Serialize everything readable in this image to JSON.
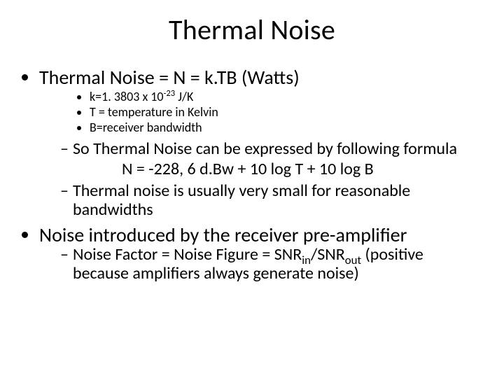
{
  "title": "Thermal Noise",
  "body_fontsize_pt": 28,
  "sub_fontsize_pt": 24,
  "subsub_fontsize_pt": 18,
  "title_fontsize_pt": 40,
  "text_color": "#000000",
  "background_color": "#ffffff",
  "bullets": {
    "b1": "Thermal Noise = N = k.TB (Watts)",
    "b1_sub": {
      "s1_pre": "k=1. 3803 x 10",
      "s1_sup": "-23",
      "s1_post": " J/K",
      "s2": "T = temperature in Kelvin",
      "s3": "B=receiver bandwidth"
    },
    "b1_dash": {
      "d1_line1": "So Thermal Noise can be expressed by following formula",
      "d1_formula": "N = -228, 6 d.Bw + 10 log T + 10 log B",
      "d2": "Thermal noise is usually very small for reasonable bandwidths"
    },
    "b2": "Noise introduced by the receiver pre-amplifier",
    "b2_dash": {
      "d1_pre": "Noise Factor = Noise Figure = SNR",
      "d1_sub1": "in",
      "d1_mid": "/SNR",
      "d1_sub2": "out",
      "d1_post": " (positive because amplifiers always generate noise)"
    }
  }
}
